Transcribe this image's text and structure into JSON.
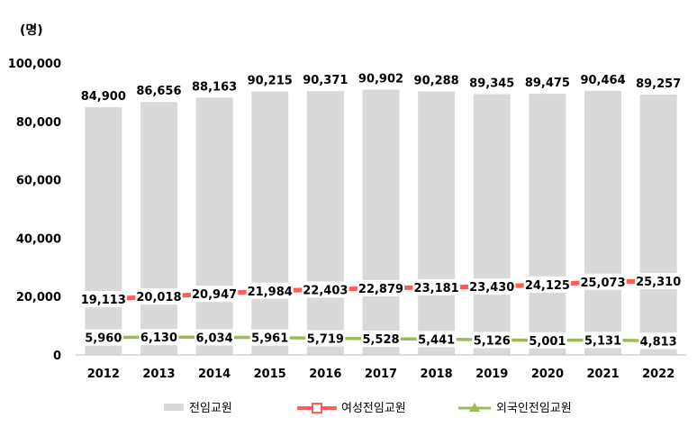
{
  "chart_data": {
    "type": "bar",
    "unit_label": "(명)",
    "categories": [
      "2012",
      "2013",
      "2014",
      "2015",
      "2016",
      "2017",
      "2018",
      "2019",
      "2020",
      "2021",
      "2022"
    ],
    "ylim": [
      0,
      100000
    ],
    "y_ticks": [
      "0",
      "20,000",
      "40,000",
      "60,000",
      "80,000",
      "100,000"
    ],
    "grid": false,
    "legend_position": "bottom",
    "series": [
      {
        "name": "전임교원",
        "type": "bar",
        "color": "#d9d9d9",
        "values": [
          84900,
          86656,
          88163,
          90215,
          90371,
          90902,
          90288,
          89345,
          89475,
          90464,
          89257
        ],
        "labels": [
          "84,900",
          "86,656",
          "88,163",
          "90,215",
          "90,371",
          "90,902",
          "90,288",
          "89,345",
          "89,475",
          "90,464",
          "89,257"
        ]
      },
      {
        "name": "여성전임교원",
        "type": "line",
        "color": "#ff5b5b",
        "values": [
          19113,
          20018,
          20947,
          21984,
          22403,
          22879,
          23181,
          23430,
          24125,
          25073,
          25310
        ],
        "labels": [
          "19,113",
          "20,018",
          "20,947",
          "21,984",
          "22,403",
          "22,879",
          "23,181",
          "23,430",
          "24,125",
          "25,073",
          "25,310"
        ]
      },
      {
        "name": "외국인전임교원",
        "type": "line",
        "color": "#9bbb59",
        "values": [
          5960,
          6130,
          6034,
          5961,
          5719,
          5528,
          5441,
          5126,
          5001,
          5131,
          4813
        ],
        "labels": [
          "5,960",
          "6,130",
          "6,034",
          "5,961",
          "5,719",
          "5,528",
          "5,441",
          "5,126",
          "5,001",
          "5,131",
          "4,813"
        ]
      }
    ]
  }
}
